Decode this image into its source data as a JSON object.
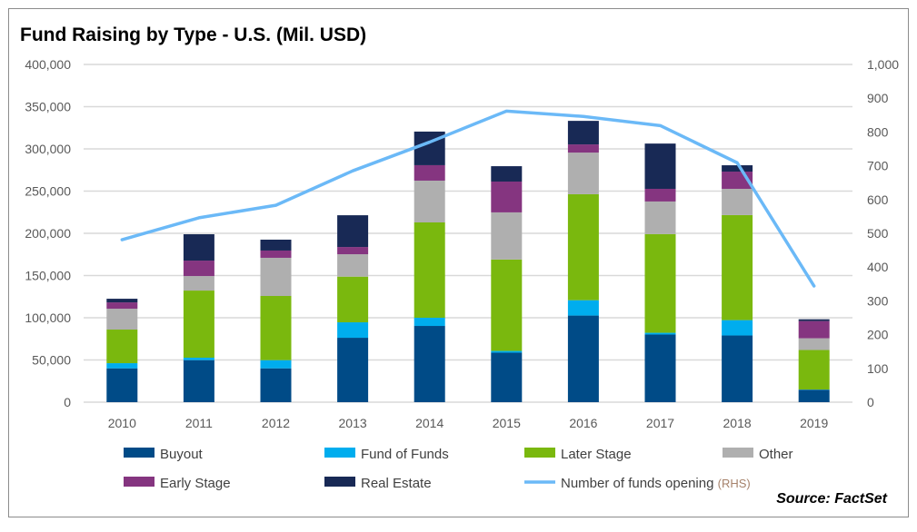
{
  "chart_data": {
    "type": "bar",
    "stacked": true,
    "title": "Fund Raising by Type - U.S. (Mil. USD)",
    "categories": [
      "2010",
      "2011",
      "2012",
      "2013",
      "2014",
      "2015",
      "2016",
      "2017",
      "2018",
      "2019"
    ],
    "ylim": [
      0,
      400000
    ],
    "yticks": [
      "0",
      "50,000",
      "100,000",
      "150,000",
      "200,000",
      "250,000",
      "300,000",
      "350,000",
      "400,000"
    ],
    "y2lim": [
      0,
      1000
    ],
    "y2ticks": [
      "0",
      "100",
      "200",
      "300",
      "400",
      "500",
      "600",
      "700",
      "800",
      "900",
      "1,000"
    ],
    "grid": true,
    "legend_position": "bottom",
    "series": [
      {
        "name": "Buyout",
        "color": "#004b87",
        "values": [
          40100,
          49800,
          40100,
          76300,
          90300,
          58600,
          102600,
          80100,
          79000,
          14700
        ]
      },
      {
        "name": "Fund of Funds",
        "color": "#00adee",
        "values": [
          6100,
          2900,
          9700,
          18300,
          9700,
          2100,
          18200,
          2100,
          18200,
          300
        ]
      },
      {
        "name": "Later Stage",
        "color": "#7ab80e",
        "values": [
          39800,
          79500,
          76000,
          54100,
          112900,
          108300,
          125500,
          116900,
          124400,
          46800
        ]
      },
      {
        "name": "Other",
        "color": "#afafaf",
        "values": [
          24700,
          17200,
          45200,
          26500,
          49500,
          55800,
          49300,
          38600,
          31100,
          13900
        ]
      },
      {
        "name": "Early Stage",
        "color": "#853580",
        "values": [
          7500,
          18300,
          8600,
          8600,
          18300,
          36500,
          9700,
          15000,
          20400,
          20400
        ]
      },
      {
        "name": "Real Estate",
        "color": "#182955",
        "values": [
          4300,
          31200,
          12900,
          37600,
          39800,
          18200,
          27900,
          53600,
          7500,
          2100
        ]
      }
    ],
    "line_series": {
      "name": "Number of funds opening",
      "suffix": "(RHS)",
      "color": "#6bb9f7",
      "axis": "right",
      "values": [
        481,
        546,
        583,
        685,
        770,
        862,
        846,
        819,
        709,
        344
      ]
    }
  },
  "source": "Source: FactSet"
}
